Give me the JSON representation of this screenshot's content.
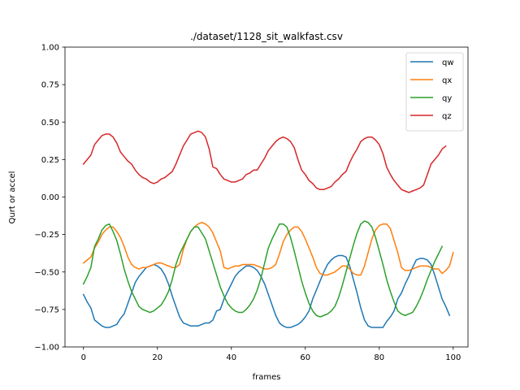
{
  "chart_data": {
    "type": "line",
    "title": "./dataset/1128_sit_walkfast.csv",
    "xlabel": "frames",
    "ylabel": "Qurt or accel",
    "xlim": [
      -5,
      104
    ],
    "ylim": [
      -1.0,
      1.0
    ],
    "xticks": [
      0,
      20,
      40,
      60,
      80,
      100
    ],
    "xtick_labels": [
      "0",
      "20",
      "40",
      "60",
      "80",
      "100"
    ],
    "yticks": [
      -1.0,
      -0.75,
      -0.5,
      -0.25,
      0.0,
      0.25,
      0.5,
      0.75,
      1.0
    ],
    "ytick_labels": [
      "−1.00",
      "−0.75",
      "−0.50",
      "−0.25",
      "0.00",
      "0.25",
      "0.50",
      "0.75",
      "1.00"
    ],
    "grid": false,
    "legend_position": "top-right",
    "series": [
      {
        "name": "qw",
        "color": "#1f77b4",
        "values": [
          -0.65,
          -0.7,
          -0.74,
          -0.82,
          -0.84,
          -0.86,
          -0.87,
          -0.87,
          -0.86,
          -0.85,
          -0.81,
          -0.78,
          -0.71,
          -0.64,
          -0.57,
          -0.53,
          -0.5,
          -0.47,
          -0.46,
          -0.45,
          -0.46,
          -0.48,
          -0.52,
          -0.58,
          -0.66,
          -0.73,
          -0.8,
          -0.84,
          -0.85,
          -0.86,
          -0.86,
          -0.86,
          -0.85,
          -0.84,
          -0.84,
          -0.82,
          -0.76,
          -0.75,
          -0.68,
          -0.63,
          -0.58,
          -0.53,
          -0.5,
          -0.48,
          -0.46,
          -0.46,
          -0.47,
          -0.49,
          -0.53,
          -0.58,
          -0.65,
          -0.72,
          -0.79,
          -0.84,
          -0.86,
          -0.87,
          -0.87,
          -0.86,
          -0.85,
          -0.83,
          -0.8,
          -0.76,
          -0.68,
          -0.62,
          -0.56,
          -0.5,
          -0.45,
          -0.42,
          -0.4,
          -0.39,
          -0.39,
          -0.4,
          -0.46,
          -0.55,
          -0.64,
          -0.74,
          -0.82,
          -0.86,
          -0.87,
          -0.87,
          -0.87,
          -0.87,
          -0.83,
          -0.8,
          -0.76,
          -0.68,
          -0.64,
          -0.58,
          -0.53,
          -0.47,
          -0.42,
          -0.41,
          -0.41,
          -0.42,
          -0.45,
          -0.52,
          -0.6,
          -0.68,
          -0.73,
          -0.79
        ]
      },
      {
        "name": "qx",
        "color": "#ff7f0e",
        "values": [
          -0.44,
          -0.42,
          -0.4,
          -0.34,
          -0.3,
          -0.25,
          -0.22,
          -0.2,
          -0.2,
          -0.23,
          -0.27,
          -0.33,
          -0.4,
          -0.45,
          -0.47,
          -0.48,
          -0.47,
          -0.47,
          -0.46,
          -0.45,
          -0.44,
          -0.44,
          -0.45,
          -0.46,
          -0.47,
          -0.47,
          -0.45,
          -0.35,
          -0.28,
          -0.23,
          -0.2,
          -0.18,
          -0.17,
          -0.18,
          -0.2,
          -0.24,
          -0.3,
          -0.36,
          -0.47,
          -0.48,
          -0.47,
          -0.46,
          -0.46,
          -0.45,
          -0.45,
          -0.45,
          -0.45,
          -0.46,
          -0.47,
          -0.48,
          -0.48,
          -0.47,
          -0.45,
          -0.38,
          -0.3,
          -0.25,
          -0.22,
          -0.2,
          -0.2,
          -0.23,
          -0.28,
          -0.34,
          -0.4,
          -0.47,
          -0.51,
          -0.52,
          -0.52,
          -0.51,
          -0.5,
          -0.48,
          -0.46,
          -0.46,
          -0.48,
          -0.51,
          -0.52,
          -0.52,
          -0.46,
          -0.37,
          -0.28,
          -0.22,
          -0.19,
          -0.18,
          -0.18,
          -0.21,
          -0.29,
          -0.37,
          -0.47,
          -0.49,
          -0.49,
          -0.48,
          -0.47,
          -0.46,
          -0.46,
          -0.46,
          -0.47,
          -0.48,
          -0.48,
          -0.51,
          -0.49,
          -0.46,
          -0.37
        ]
      },
      {
        "name": "qy",
        "color": "#2ca02c",
        "values": [
          -0.58,
          -0.53,
          -0.47,
          -0.33,
          -0.28,
          -0.22,
          -0.19,
          -0.18,
          -0.23,
          -0.29,
          -0.38,
          -0.48,
          -0.56,
          -0.63,
          -0.68,
          -0.73,
          -0.75,
          -0.76,
          -0.77,
          -0.76,
          -0.74,
          -0.72,
          -0.68,
          -0.63,
          -0.55,
          -0.45,
          -0.38,
          -0.33,
          -0.28,
          -0.23,
          -0.2,
          -0.2,
          -0.24,
          -0.28,
          -0.36,
          -0.44,
          -0.52,
          -0.6,
          -0.66,
          -0.71,
          -0.74,
          -0.76,
          -0.77,
          -0.77,
          -0.75,
          -0.72,
          -0.68,
          -0.62,
          -0.54,
          -0.44,
          -0.34,
          -0.28,
          -0.23,
          -0.18,
          -0.18,
          -0.2,
          -0.27,
          -0.36,
          -0.46,
          -0.56,
          -0.64,
          -0.71,
          -0.76,
          -0.79,
          -0.8,
          -0.79,
          -0.78,
          -0.76,
          -0.73,
          -0.67,
          -0.59,
          -0.5,
          -0.41,
          -0.32,
          -0.24,
          -0.18,
          -0.16,
          -0.17,
          -0.2,
          -0.27,
          -0.36,
          -0.45,
          -0.55,
          -0.63,
          -0.7,
          -0.76,
          -0.78,
          -0.79,
          -0.78,
          -0.77,
          -0.73,
          -0.68,
          -0.62,
          -0.55,
          -0.49,
          -0.43,
          -0.38,
          -0.33
        ]
      },
      {
        "name": "qz",
        "color": "#d62728",
        "values": [
          0.22,
          0.25,
          0.28,
          0.35,
          0.38,
          0.41,
          0.42,
          0.42,
          0.4,
          0.36,
          0.3,
          0.27,
          0.24,
          0.22,
          0.18,
          0.15,
          0.13,
          0.12,
          0.1,
          0.09,
          0.1,
          0.12,
          0.13,
          0.15,
          0.17,
          0.22,
          0.28,
          0.34,
          0.38,
          0.42,
          0.43,
          0.44,
          0.43,
          0.4,
          0.32,
          0.2,
          0.19,
          0.15,
          0.12,
          0.11,
          0.1,
          0.1,
          0.11,
          0.12,
          0.15,
          0.16,
          0.18,
          0.18,
          0.22,
          0.26,
          0.31,
          0.34,
          0.37,
          0.39,
          0.4,
          0.39,
          0.37,
          0.33,
          0.25,
          0.18,
          0.15,
          0.11,
          0.09,
          0.06,
          0.05,
          0.05,
          0.06,
          0.07,
          0.1,
          0.12,
          0.15,
          0.17,
          0.23,
          0.28,
          0.32,
          0.37,
          0.39,
          0.4,
          0.4,
          0.38,
          0.35,
          0.29,
          0.2,
          0.15,
          0.11,
          0.08,
          0.05,
          0.04,
          0.03,
          0.04,
          0.05,
          0.06,
          0.08,
          0.15,
          0.22,
          0.25,
          0.28,
          0.32,
          0.34
        ]
      }
    ]
  }
}
